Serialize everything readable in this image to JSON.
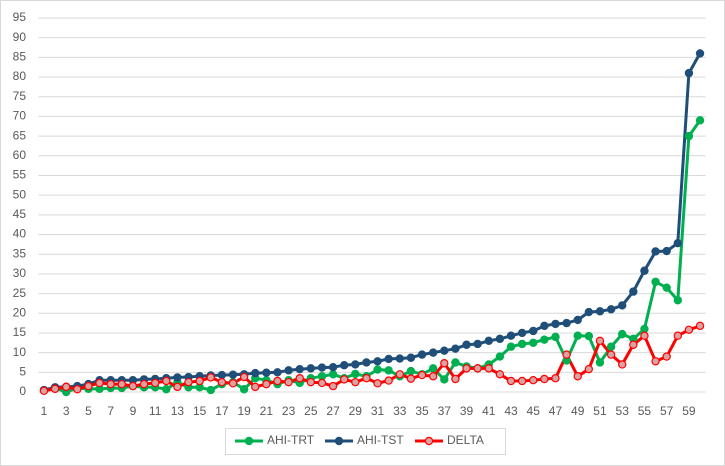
{
  "chart_data": {
    "type": "line",
    "categories": [
      1,
      null,
      3,
      null,
      5,
      null,
      7,
      null,
      9,
      null,
      11,
      null,
      13,
      null,
      15,
      null,
      17,
      null,
      19,
      null,
      21,
      null,
      23,
      null,
      25,
      null,
      27,
      null,
      29,
      null,
      31,
      null,
      33,
      null,
      35,
      null,
      37,
      null,
      39,
      null,
      41,
      null,
      43,
      null,
      45,
      null,
      47,
      null,
      49,
      null,
      51,
      null,
      53,
      null,
      55,
      null,
      57,
      null,
      59,
      null
    ],
    "ylim": [
      0,
      95
    ],
    "yticks": [
      0,
      5,
      10,
      15,
      20,
      25,
      30,
      35,
      40,
      45,
      50,
      55,
      60,
      65,
      70,
      75,
      80,
      85,
      90,
      95
    ],
    "grid": true,
    "legend": "bottom",
    "series": [
      {
        "name": "AHI-TRT",
        "color": "#00b050",
        "marker_fill": "#00b050",
        "values": [
          0.4,
          1,
          0,
          1,
          0.8,
          0.8,
          1,
          1,
          1.5,
          1.2,
          1.2,
          0.7,
          2.5,
          1.2,
          1.2,
          0.5,
          2,
          2.5,
          0.7,
          3.5,
          3,
          2,
          3,
          2.3,
          3.5,
          4,
          4.5,
          3.5,
          4.6,
          4,
          5.7,
          5.5,
          4,
          5.3,
          4.5,
          6,
          3.2,
          7.5,
          6.5,
          6,
          7,
          9,
          11.5,
          12.2,
          12.5,
          13.3,
          14,
          8,
          14.3,
          14.2,
          7.5,
          11.5,
          14.7,
          13.5,
          16,
          28,
          26.5,
          23.3,
          65,
          69
        ]
      },
      {
        "name": "AHI-TST",
        "color": "#1f4e79",
        "marker_fill": "#1f4e79",
        "values": [
          0.5,
          1.2,
          1.3,
          1.5,
          2,
          3,
          3,
          3,
          3,
          3.2,
          3.3,
          3.5,
          3.7,
          3.8,
          4,
          4.2,
          4.3,
          4.4,
          4.5,
          4.8,
          4.9,
          5,
          5.5,
          5.8,
          6,
          6.2,
          6.3,
          6.8,
          7,
          7.5,
          7.8,
          8.4,
          8.5,
          8.7,
          9.5,
          10,
          10.5,
          11,
          12,
          12.2,
          13,
          13.5,
          14.3,
          15,
          15.5,
          16.8,
          17.3,
          17.5,
          18.3,
          20.3,
          20.5,
          21,
          22,
          25.5,
          30.8,
          35.7,
          35.8,
          37.8,
          81,
          86
        ]
      },
      {
        "name": "DELTA",
        "color": "#ff0000",
        "marker_fill": "#d9a3a3",
        "values": [
          0.3,
          0.8,
          1.3,
          0.7,
          1.5,
          2.3,
          2,
          2,
          1.5,
          2,
          2.3,
          2.8,
          1.3,
          2.5,
          2.8,
          3.7,
          2.5,
          2.2,
          3.8,
          1.3,
          2,
          2.8,
          2.5,
          3.5,
          2.5,
          2.3,
          1.5,
          3.2,
          2.5,
          3.5,
          2.2,
          2.9,
          4.5,
          3.4,
          4.3,
          4,
          7.3,
          3.3,
          6,
          6,
          6,
          4.5,
          2.8,
          2.8,
          3,
          3.3,
          3.5,
          9.5,
          4,
          5.8,
          13,
          9.5,
          7,
          12,
          14.3,
          7.8,
          9,
          14.3,
          15.8,
          16.8
        ]
      }
    ]
  }
}
